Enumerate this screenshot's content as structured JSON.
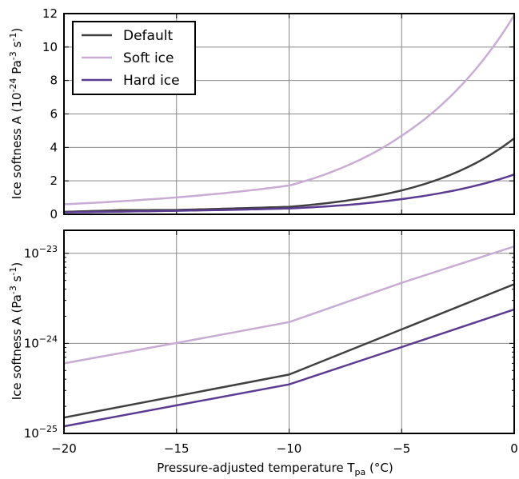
{
  "chart_data": [
    {
      "type": "line",
      "panel": "top",
      "xlabel": "Pressure-adjusted temperature T",
      "xlabel_sub": "pa",
      "xlabel_suffix": " (°C)",
      "ylabel": "Ice softness A (10⁻²⁴ Pa⁻³ s⁻¹)",
      "xlim": [
        -20,
        0
      ],
      "ylim": [
        0,
        12
      ],
      "yscale": "linear",
      "xticks": [
        "-20",
        "-15",
        "-10",
        "-5",
        "0"
      ],
      "yticks": [
        "0",
        "2",
        "4",
        "6",
        "8",
        "10",
        "12"
      ],
      "grid": true,
      "legend": "top-left",
      "x": [
        -20,
        -17.5,
        -15,
        -12.5,
        -10,
        -7.5,
        -5,
        -2.5,
        0
      ],
      "series": [
        {
          "name": "Default",
          "color": "#404040",
          "values": [
            0.15,
            0.25,
            0.26,
            0.35,
            0.45,
            0.81,
            1.43,
            2.55,
            4.54
          ]
        },
        {
          "name": "Soft ice",
          "color": "#c9acd4",
          "values": [
            0.6,
            0.78,
            1.01,
            1.32,
            1.72,
            2.87,
            4.7,
            7.5,
            11.9
          ]
        },
        {
          "name": "Hard ice",
          "color": "#5b3a92",
          "values": [
            0.12,
            0.16,
            0.21,
            0.27,
            0.35,
            0.55,
            0.91,
            1.47,
            2.38
          ]
        }
      ]
    },
    {
      "type": "line",
      "panel": "bottom",
      "ylabel": "Ice softness A (Pa⁻³ s⁻¹)",
      "xlim": [
        -20,
        0
      ],
      "ylim": [
        1e-25,
        1.8e-23
      ],
      "yscale": "log",
      "xticks": [
        "-20",
        "-15",
        "-10",
        "-5",
        "0"
      ],
      "yticks": [
        {
          "base": "10",
          "exp": "-25",
          "value": 1e-25
        },
        {
          "base": "10",
          "exp": "-24",
          "value": 1e-24
        },
        {
          "base": "10",
          "exp": "-23",
          "value": 1e-23
        }
      ],
      "grid": true,
      "x": [
        -20,
        -15,
        -10,
        -5,
        0
      ],
      "series": [
        {
          "name": "Default",
          "color": "#404040",
          "values": [
            1.5e-25,
            2.6e-25,
            4.5e-25,
            1.43e-24,
            4.54e-24
          ]
        },
        {
          "name": "Soft ice",
          "color": "#c9acd4",
          "values": [
            6e-25,
            1.01e-24,
            1.72e-24,
            4.7e-24,
            1.19e-23
          ]
        },
        {
          "name": "Hard ice",
          "color": "#5b3a92",
          "values": [
            1.2e-25,
            2.05e-25,
            3.5e-25,
            9.1e-25,
            2.38e-24
          ]
        }
      ]
    }
  ]
}
